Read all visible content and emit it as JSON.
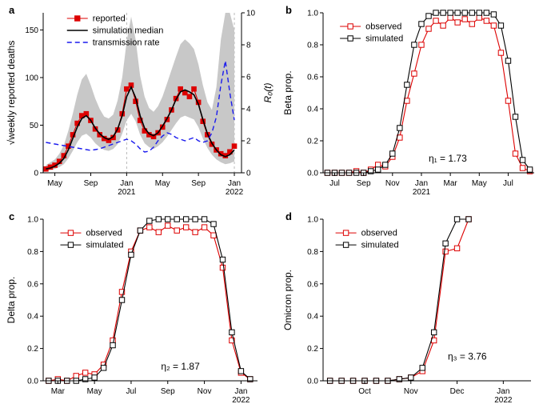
{
  "figure": {
    "background": "#ffffff"
  },
  "chart_data": [
    {
      "id": "panel-a",
      "type": "line",
      "panel_label": "a",
      "ylabel": "√weekly reported deaths",
      "y2label": "R₀(t)",
      "y2color": "#1a1aee",
      "xlim": [
        0.7,
        22.8
      ],
      "ylim": [
        0,
        168
      ],
      "y2lim": [
        0,
        10
      ],
      "margins": {
        "l": 48,
        "r": 44,
        "t": 14,
        "b": 42
      },
      "grid_x": [
        10,
        22
      ],
      "xticks": [
        {
          "v": 2,
          "l": "May"
        },
        {
          "v": 6,
          "l": "Sep"
        },
        {
          "v": 10,
          "l": "Jan",
          "l2": "2021"
        },
        {
          "v": 14,
          "l": "May"
        },
        {
          "v": 18,
          "l": "Sep"
        },
        {
          "v": 22,
          "l": "Jan",
          "l2": "2022"
        }
      ],
      "yticks": [
        {
          "v": 0,
          "l": "0"
        },
        {
          "v": 50,
          "l": "50"
        },
        {
          "v": 100,
          "l": "100"
        },
        {
          "v": 150,
          "l": "150"
        }
      ],
      "y2ticks": [
        {
          "v": 0,
          "l": "0"
        },
        {
          "v": 2,
          "l": "2"
        },
        {
          "v": 4,
          "l": "4"
        },
        {
          "v": 6,
          "l": "6"
        },
        {
          "v": 8,
          "l": "8"
        },
        {
          "v": 10,
          "l": "10"
        }
      ],
      "band": {
        "color": "#c8c8c8",
        "x": [
          1,
          1.5,
          2,
          2.5,
          3,
          3.5,
          4,
          4.5,
          5,
          5.5,
          6,
          6.5,
          7,
          7.5,
          8,
          8.5,
          9,
          9.5,
          10,
          10.5,
          11,
          11.5,
          12,
          12.5,
          13,
          13.5,
          14,
          14.5,
          15,
          15.5,
          16,
          16.5,
          17,
          17.5,
          18,
          18.5,
          19,
          19.5,
          20,
          20.5,
          21,
          21.5,
          22
        ],
        "upper": [
          8,
          11,
          14,
          20,
          29,
          44,
          62,
          82,
          98,
          104,
          92,
          78,
          67,
          59,
          57,
          61,
          76,
          100,
          138,
          164,
          140,
          102,
          80,
          68,
          64,
          70,
          80,
          94,
          108,
          122,
          135,
          140,
          136,
          130,
          114,
          92,
          74,
          66,
          90,
          140,
          176,
          170,
          150
        ],
        "lower": [
          2,
          3,
          4,
          6,
          9,
          15,
          23,
          32,
          39,
          41,
          37,
          31,
          27,
          24,
          23,
          25,
          30,
          41,
          55,
          62,
          54,
          40,
          31,
          27,
          25,
          28,
          32,
          38,
          45,
          52,
          58,
          60,
          58,
          56,
          48,
          36,
          26,
          19,
          14,
          11,
          9,
          10,
          12
        ]
      },
      "series": [
        {
          "name": "reported",
          "color": "#dd0000",
          "width": 1.1,
          "marker": "filled-square",
          "marker_size": 2.8,
          "axis": "y1",
          "x": [
            1,
            1.5,
            2,
            2.5,
            3,
            3.5,
            4,
            4.5,
            5,
            5.5,
            6,
            6.5,
            7,
            7.5,
            8,
            8.5,
            9,
            9.5,
            10,
            10.5,
            11,
            11.5,
            12,
            12.5,
            13,
            13.5,
            14,
            14.5,
            15,
            15.5,
            16,
            16.5,
            17,
            17.5,
            18,
            18.5,
            19,
            19.5,
            20,
            20.5,
            21,
            21.5,
            22
          ],
          "y": [
            4,
            6,
            8,
            12,
            18,
            28,
            40,
            52,
            60,
            62,
            55,
            46,
            40,
            36,
            34,
            37,
            45,
            62,
            88,
            92,
            75,
            55,
            44,
            40,
            38,
            42,
            48,
            56,
            66,
            78,
            88,
            84,
            80,
            88,
            74,
            54,
            40,
            30,
            24,
            20,
            18,
            22,
            28
          ]
        },
        {
          "name": "simulation median",
          "color": "#000000",
          "width": 1.6,
          "axis": "y1",
          "x": [
            1,
            1.5,
            2,
            2.5,
            3,
            3.5,
            4,
            4.5,
            5,
            5.5,
            6,
            6.5,
            7,
            7.5,
            8,
            8.5,
            9,
            9.5,
            10,
            10.5,
            11,
            11.5,
            12,
            12.5,
            13,
            13.5,
            14,
            14.5,
            15,
            15.5,
            16,
            16.5,
            17,
            17.5,
            18,
            18.5,
            19,
            19.5,
            20,
            20.5,
            21,
            21.5,
            22
          ],
          "y": [
            4,
            5,
            7,
            10,
            15,
            24,
            36,
            48,
            57,
            60,
            55,
            47,
            41,
            37,
            35,
            38,
            46,
            60,
            80,
            90,
            79,
            60,
            47,
            41,
            39,
            42,
            49,
            57,
            66,
            77,
            85,
            87,
            85,
            82,
            72,
            56,
            41,
            31,
            24,
            19,
            17,
            19,
            24
          ]
        },
        {
          "name": "transmission rate",
          "color": "#1a1aee",
          "width": 1.4,
          "dash": "6,4",
          "axis": "y2",
          "x": [
            1,
            1.5,
            2,
            2.5,
            3,
            3.5,
            4,
            4.5,
            5,
            5.5,
            6,
            6.5,
            7,
            7.5,
            8,
            8.5,
            9,
            9.5,
            10,
            10.5,
            11,
            11.5,
            12,
            12.5,
            13,
            13.5,
            14,
            14.5,
            15,
            15.5,
            16,
            16.5,
            17,
            17.5,
            18,
            18.5,
            19,
            19.5,
            20,
            20.5,
            21,
            21.5,
            22
          ],
          "y": [
            1.9,
            1.85,
            1.8,
            1.75,
            1.7,
            1.65,
            1.6,
            1.55,
            1.5,
            1.45,
            1.4,
            1.45,
            1.5,
            1.6,
            1.7,
            1.8,
            1.9,
            2.0,
            2.1,
            2.0,
            1.8,
            1.5,
            1.3,
            1.35,
            1.6,
            2.0,
            2.3,
            2.5,
            2.4,
            2.2,
            2.1,
            2.0,
            2.1,
            2.2,
            2.0,
            1.9,
            2.0,
            2.5,
            3.5,
            5.5,
            7.0,
            5.0,
            3.3
          ]
        }
      ],
      "legend": {
        "px": 0.12,
        "py": 0.99
      },
      "annotation": null
    },
    {
      "id": "panel-b",
      "type": "line",
      "panel_label": "b",
      "ylabel": "Beta prop.",
      "xlim": [
        0.2,
        14.8
      ],
      "ylim": [
        0,
        1.0
      ],
      "margins": {
        "l": 52,
        "r": 16,
        "t": 14,
        "b": 42
      },
      "xticks": [
        {
          "v": 1,
          "l": "Jul"
        },
        {
          "v": 3,
          "l": "Sep"
        },
        {
          "v": 5,
          "l": "Nov"
        },
        {
          "v": 7,
          "l": "Jan",
          "l2": "2021"
        },
        {
          "v": 9,
          "l": "Mar"
        },
        {
          "v": 11,
          "l": "May"
        },
        {
          "v": 13,
          "l": "Jul"
        }
      ],
      "yticks": [
        {
          "v": 0,
          "l": "0.0"
        },
        {
          "v": 0.2,
          "l": "0.2"
        },
        {
          "v": 0.4,
          "l": "0.4"
        },
        {
          "v": 0.6,
          "l": "0.6"
        },
        {
          "v": 0.8,
          "l": "0.8"
        },
        {
          "v": 1.0,
          "l": "1.0"
        }
      ],
      "series": [
        {
          "name": "observed",
          "color": "#dd0000",
          "width": 1.1,
          "marker": "open-square",
          "marker_size": 3.2,
          "axis": "y1",
          "x": [
            0.5,
            1,
            1.5,
            2,
            2.5,
            3,
            3.5,
            4,
            4.5,
            5,
            5.5,
            6,
            6.5,
            7,
            7.5,
            8,
            8.5,
            9,
            9.5,
            10,
            10.5,
            11,
            11.5,
            12,
            12.5,
            13,
            13.5,
            14,
            14.5
          ],
          "y": [
            0,
            0,
            0,
            0,
            0.01,
            0,
            0.02,
            0.05,
            0.04,
            0.1,
            0.22,
            0.45,
            0.62,
            0.8,
            0.9,
            0.95,
            0.92,
            0.97,
            0.94,
            0.96,
            0.93,
            0.97,
            0.95,
            0.92,
            0.75,
            0.45,
            0.12,
            0.03,
            0.01
          ]
        },
        {
          "name": "simulated",
          "color": "#000000",
          "width": 1.1,
          "marker": "open-square",
          "marker_size": 3.2,
          "axis": "y1",
          "x": [
            0.5,
            1,
            1.5,
            2,
            2.5,
            3,
            3.5,
            4,
            4.5,
            5,
            5.5,
            6,
            6.5,
            7,
            7.5,
            8,
            8.5,
            9,
            9.5,
            10,
            10.5,
            11,
            11.5,
            12,
            12.5,
            13,
            13.5,
            14,
            14.5
          ],
          "y": [
            0,
            0,
            0,
            0,
            0,
            0,
            0.01,
            0.02,
            0.05,
            0.12,
            0.28,
            0.55,
            0.8,
            0.93,
            0.98,
            1.0,
            1.0,
            1.0,
            1.0,
            1.0,
            1.0,
            1.0,
            1.0,
            0.99,
            0.92,
            0.7,
            0.35,
            0.08,
            0.02
          ]
        }
      ],
      "legend": {
        "px": 0.08,
        "py": 0.94
      },
      "annotation": {
        "text": "η₁ = 1.73",
        "px": 0.5,
        "py": 0.07
      }
    },
    {
      "id": "panel-c",
      "type": "line",
      "panel_label": "c",
      "ylabel": "Delta prop.",
      "xlim": [
        0.2,
        11.9
      ],
      "ylim": [
        0,
        1.0
      ],
      "margins": {
        "l": 48,
        "r": 24,
        "t": 14,
        "b": 46
      },
      "xticks": [
        {
          "v": 1,
          "l": "Mar"
        },
        {
          "v": 3,
          "l": "May"
        },
        {
          "v": 5,
          "l": "Jul"
        },
        {
          "v": 7,
          "l": "Sep"
        },
        {
          "v": 9,
          "l": "Nov"
        },
        {
          "v": 11,
          "l": "Jan",
          "l2": "2022"
        }
      ],
      "yticks": [
        {
          "v": 0,
          "l": "0.0"
        },
        {
          "v": 0.2,
          "l": "0.2"
        },
        {
          "v": 0.4,
          "l": "0.4"
        },
        {
          "v": 0.6,
          "l": "0.6"
        },
        {
          "v": 0.8,
          "l": "0.8"
        },
        {
          "v": 1.0,
          "l": "1.0"
        }
      ],
      "series": [
        {
          "name": "observed",
          "color": "#dd0000",
          "width": 1.1,
          "marker": "open-square",
          "marker_size": 3.2,
          "axis": "y1",
          "x": [
            0.5,
            1,
            1.5,
            2,
            2.5,
            3,
            3.5,
            4,
            4.5,
            5,
            5.5,
            6,
            6.5,
            7,
            7.5,
            8,
            8.5,
            9,
            9.5,
            10,
            10.5,
            11,
            11.5
          ],
          "y": [
            0,
            0.01,
            0,
            0.03,
            0.05,
            0.04,
            0.1,
            0.25,
            0.55,
            0.8,
            0.93,
            0.95,
            0.92,
            0.96,
            0.93,
            0.95,
            0.92,
            0.95,
            0.9,
            0.7,
            0.25,
            0.05,
            0.01
          ]
        },
        {
          "name": "simulated",
          "color": "#000000",
          "width": 1.1,
          "marker": "open-square",
          "marker_size": 3.2,
          "axis": "y1",
          "x": [
            0.5,
            1,
            1.5,
            2,
            2.5,
            3,
            3.5,
            4,
            4.5,
            5,
            5.5,
            6,
            6.5,
            7,
            7.5,
            8,
            8.5,
            9,
            9.5,
            10,
            10.5,
            11,
            11.5
          ],
          "y": [
            0,
            0,
            0,
            0,
            0.01,
            0.02,
            0.08,
            0.22,
            0.5,
            0.78,
            0.93,
            0.99,
            1.0,
            1.0,
            1.0,
            1.0,
            1.0,
            1.0,
            0.97,
            0.75,
            0.3,
            0.06,
            0.01
          ]
        }
      ],
      "legend": {
        "px": 0.08,
        "py": 0.94
      },
      "annotation": {
        "text": "η₂ = 1.87",
        "px": 0.55,
        "py": 0.07
      }
    },
    {
      "id": "panel-d",
      "type": "line",
      "panel_label": "d",
      "ylabel": "Omicron prop.",
      "xlim": [
        0.1,
        4.6
      ],
      "ylim": [
        0,
        1.0
      ],
      "margins": {
        "l": 52,
        "r": 20,
        "t": 14,
        "b": 46
      },
      "xticks": [
        {
          "v": 1,
          "l": "Oct"
        },
        {
          "v": 2,
          "l": "Nov"
        },
        {
          "v": 3,
          "l": "Dec"
        },
        {
          "v": 4,
          "l": "Jan",
          "l2": "2022"
        }
      ],
      "yticks": [
        {
          "v": 0,
          "l": "0.0"
        },
        {
          "v": 0.2,
          "l": "0.2"
        },
        {
          "v": 0.4,
          "l": "0.4"
        },
        {
          "v": 0.6,
          "l": "0.6"
        },
        {
          "v": 0.8,
          "l": "0.8"
        },
        {
          "v": 1.0,
          "l": "1.0"
        }
      ],
      "series": [
        {
          "name": "observed",
          "color": "#dd0000",
          "width": 1.1,
          "marker": "open-square",
          "marker_size": 3.2,
          "axis": "y1",
          "x": [
            0.25,
            0.5,
            0.75,
            1.0,
            1.25,
            1.5,
            1.75,
            2.0,
            2.25,
            2.5,
            2.75,
            3.0,
            3.25
          ],
          "y": [
            0,
            0,
            0,
            0,
            0,
            0,
            0.01,
            0.02,
            0.06,
            0.25,
            0.8,
            0.82,
            1.0
          ]
        },
        {
          "name": "simulated",
          "color": "#000000",
          "width": 1.1,
          "marker": "open-square",
          "marker_size": 3.2,
          "axis": "y1",
          "x": [
            0.25,
            0.5,
            0.75,
            1.0,
            1.25,
            1.5,
            1.75,
            2.0,
            2.25,
            2.5,
            2.75,
            3.0,
            3.25
          ],
          "y": [
            0,
            0,
            0,
            0,
            0,
            0,
            0.01,
            0.02,
            0.08,
            0.3,
            0.85,
            1.0,
            1.0
          ]
        }
      ],
      "legend": {
        "px": 0.06,
        "py": 0.94
      },
      "annotation": {
        "text": "η₃ = 3.76",
        "px": 0.6,
        "py": 0.13
      }
    }
  ]
}
